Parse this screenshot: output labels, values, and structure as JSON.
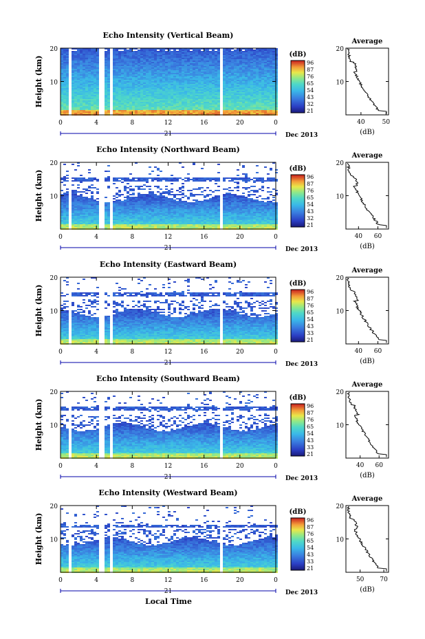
{
  "chart_data": [
    {
      "type": "heatmap",
      "title": "Echo Intensity (Vertical Beam)",
      "ylabel": "Height (km)",
      "y_ticks": [
        "20",
        "10"
      ],
      "x_ticks": [
        "0",
        "4",
        "8",
        "12",
        "16",
        "20",
        "0"
      ],
      "date_mid": "21",
      "date_label": "Dec 2013",
      "xlim_hours": [
        0,
        24
      ],
      "ylim_km": [
        0,
        20
      ],
      "colorbar": {
        "label": "(dB)",
        "ticks": [
          "96",
          "87",
          "76",
          "65",
          "54",
          "43",
          "32",
          "21"
        ]
      },
      "profile": {
        "title": "Average",
        "xlabel": "(dB)",
        "x_ticks": [
          "40",
          "50"
        ],
        "y_ticks": [
          "20",
          "10"
        ],
        "xlim": [
          34,
          51
        ]
      }
    },
    {
      "type": "heatmap",
      "title": "Echo Intensity (Northward Beam)",
      "ylabel": "Height (km)",
      "y_ticks": [
        "20",
        "10"
      ],
      "x_ticks": [
        "0",
        "4",
        "8",
        "12",
        "16",
        "20",
        "0"
      ],
      "date_mid": "21",
      "date_label": "Dec 2013",
      "xlim_hours": [
        0,
        24
      ],
      "ylim_km": [
        0,
        20
      ],
      "colorbar": {
        "label": "(dB)",
        "ticks": [
          "96",
          "87",
          "76",
          "65",
          "54",
          "43",
          "32",
          "21"
        ]
      },
      "profile": {
        "title": "Average",
        "xlabel": "(dB)",
        "x_ticks": [
          "40",
          "60"
        ],
        "y_ticks": [
          "20",
          "10"
        ],
        "xlim": [
          27,
          71
        ]
      }
    },
    {
      "type": "heatmap",
      "title": "Echo Intensity (Eastward Beam)",
      "ylabel": "Height (km)",
      "y_ticks": [
        "20",
        "10"
      ],
      "x_ticks": [
        "0",
        "4",
        "8",
        "12",
        "16",
        "20",
        "0"
      ],
      "date_mid": "21",
      "date_label": "Dec 2013",
      "xlim_hours": [
        0,
        24
      ],
      "ylim_km": [
        0,
        20
      ],
      "colorbar": {
        "label": "(dB)",
        "ticks": [
          "96",
          "87",
          "76",
          "65",
          "54",
          "43",
          "33",
          "21"
        ]
      },
      "profile": {
        "title": "Average",
        "xlabel": "(dB)",
        "x_ticks": [
          "40",
          "60"
        ],
        "y_ticks": [
          "20",
          "10"
        ],
        "xlim": [
          27,
          71
        ]
      }
    },
    {
      "type": "heatmap",
      "title": "Echo Intensity (Southward Beam)",
      "ylabel": "Height (km)",
      "y_ticks": [
        "20",
        "10"
      ],
      "x_ticks": [
        "0",
        "4",
        "8",
        "12",
        "16",
        "20",
        "0"
      ],
      "date_mid": "21",
      "date_label": "Dec 2013",
      "xlim_hours": [
        0,
        24
      ],
      "ylim_km": [
        0,
        20
      ],
      "colorbar": {
        "label": "(dB)",
        "ticks": [
          "96",
          "87",
          "76",
          "65",
          "54",
          "43",
          "33",
          "21"
        ]
      },
      "profile": {
        "title": "Average",
        "xlabel": "(dB)",
        "x_ticks": [
          "40",
          "60"
        ],
        "y_ticks": [
          "20",
          "10"
        ],
        "xlim": [
          25,
          70
        ]
      }
    },
    {
      "type": "heatmap",
      "title": "Echo Intensity (Westward Beam)",
      "ylabel": "Height (km)",
      "y_ticks": [
        "20",
        "10"
      ],
      "x_ticks": [
        "0",
        "4",
        "8",
        "12",
        "16",
        "20",
        "0"
      ],
      "date_mid": "21",
      "date_label": "Dec 2013",
      "xlim_hours": [
        0,
        24
      ],
      "ylim_km": [
        0,
        20
      ],
      "colorbar": {
        "label": "(dB)",
        "ticks": [
          "96",
          "87",
          "76",
          "65",
          "54",
          "43",
          "33",
          "21"
        ]
      },
      "profile": {
        "title": "Average",
        "xlabel": "(dB)",
        "x_ticks": [
          "50",
          "70"
        ],
        "y_ticks": [
          "20",
          "10"
        ],
        "xlim": [
          38,
          74
        ]
      }
    }
  ],
  "footer": {
    "xlabel": "Local Time"
  },
  "colors": {
    "colormap": [
      "#1a1a7a",
      "#2b3fc4",
      "#3a7fe0",
      "#3ab8e8",
      "#4fd8c8",
      "#8ee88a",
      "#e8e84a",
      "#f4a03a",
      "#e84a2a",
      "#c81e1e"
    ],
    "line": "#000000",
    "axis_blue": "#0000aa"
  }
}
